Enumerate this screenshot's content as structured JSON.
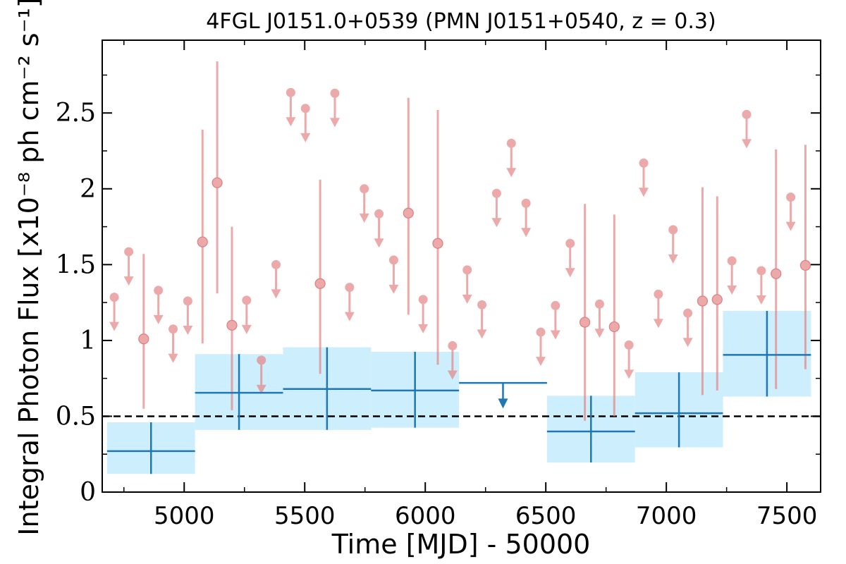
{
  "chart_data": {
    "type": "scatter",
    "title": "4FGL J0151.0+0539 (PMN J0151+0540, z = 0.3)",
    "xlabel": "Time [MJD] - 50000",
    "ylabel": "Integral Photon Flux [x10⁻⁸ ph cm⁻² s⁻¹]",
    "xlim": [
      4660,
      7640
    ],
    "ylim": [
      0,
      2.98
    ],
    "x_ticks": [
      {
        "value": 5000,
        "label": "5000"
      },
      {
        "value": 5500,
        "label": "5500"
      },
      {
        "value": 6000,
        "label": "6000"
      },
      {
        "value": 6500,
        "label": "6500"
      },
      {
        "value": 7000,
        "label": "7000"
      },
      {
        "value": 7500,
        "label": "7500"
      }
    ],
    "y_ticks": [
      {
        "value": 0,
        "label": "0"
      },
      {
        "value": 0.5,
        "label": "0.5"
      },
      {
        "value": 1,
        "label": "1"
      },
      {
        "value": 1.5,
        "label": "1.5"
      },
      {
        "value": 2,
        "label": "2"
      },
      {
        "value": 2.5,
        "label": "2.5"
      }
    ],
    "reference_line": {
      "y": 0.5,
      "style": "dashed"
    },
    "colors": {
      "short_bins": "#e58585",
      "long_bins": "#1f77b4",
      "long_band": "#cdeefd",
      "reference": "#000000"
    },
    "long_bins": [
      {
        "x0": 4680,
        "x1": 5045,
        "value": 0.27,
        "lo": 0.12,
        "hi": 0.46,
        "band_lo": 0.12,
        "band_hi": 0.46,
        "upper_limit": false
      },
      {
        "x0": 5045,
        "x1": 5410,
        "value": 0.655,
        "lo": 0.41,
        "hi": 0.91,
        "band_lo": 0.41,
        "band_hi": 0.91,
        "upper_limit": false
      },
      {
        "x0": 5410,
        "x1": 5775,
        "value": 0.68,
        "lo": 0.41,
        "hi": 0.955,
        "band_lo": 0.41,
        "band_hi": 0.955,
        "upper_limit": false
      },
      {
        "x0": 5775,
        "x1": 6140,
        "value": 0.67,
        "lo": 0.425,
        "hi": 0.925,
        "band_lo": 0.425,
        "band_hi": 0.925,
        "upper_limit": false
      },
      {
        "x0": 6140,
        "x1": 6505,
        "value": 0.72,
        "upper_limit": true
      },
      {
        "x0": 6505,
        "x1": 6870,
        "value": 0.4,
        "lo": 0.195,
        "hi": 0.635,
        "band_lo": 0.195,
        "band_hi": 0.635,
        "upper_limit": false
      },
      {
        "x0": 6870,
        "x1": 7235,
        "value": 0.52,
        "lo": 0.295,
        "hi": 0.79,
        "band_lo": 0.295,
        "band_hi": 0.79,
        "upper_limit": false
      },
      {
        "x0": 7235,
        "x1": 7600,
        "value": 0.905,
        "lo": 0.63,
        "hi": 1.195,
        "band_lo": 0.63,
        "band_hi": 1.195,
        "upper_limit": false
      }
    ],
    "short_bins": [
      {
        "x": 4710,
        "y": 1.285,
        "upper_limit": true
      },
      {
        "x": 4770,
        "y": 1.585,
        "upper_limit": true
      },
      {
        "x": 4832,
        "y": 1.01,
        "upper_limit": false,
        "lo": 0.55,
        "hi": 1.57
      },
      {
        "x": 4893,
        "y": 1.33,
        "upper_limit": true
      },
      {
        "x": 4954,
        "y": 1.075,
        "upper_limit": true
      },
      {
        "x": 5015,
        "y": 1.26,
        "upper_limit": true
      },
      {
        "x": 5076,
        "y": 1.65,
        "upper_limit": false,
        "lo": 0.98,
        "hi": 2.39
      },
      {
        "x": 5137,
        "y": 2.04,
        "upper_limit": false,
        "lo": 1.31,
        "hi": 2.84
      },
      {
        "x": 5198,
        "y": 1.1,
        "upper_limit": false,
        "lo": 0.54,
        "hi": 1.75
      },
      {
        "x": 5259,
        "y": 1.265,
        "upper_limit": true
      },
      {
        "x": 5320,
        "y": 0.87,
        "upper_limit": true
      },
      {
        "x": 5381,
        "y": 1.5,
        "upper_limit": true
      },
      {
        "x": 5442,
        "y": 2.635,
        "upper_limit": true
      },
      {
        "x": 5503,
        "y": 2.53,
        "upper_limit": true
      },
      {
        "x": 5564,
        "y": 1.375,
        "upper_limit": false,
        "lo": 0.78,
        "hi": 2.06
      },
      {
        "x": 5625,
        "y": 2.63,
        "upper_limit": true
      },
      {
        "x": 5686,
        "y": 1.35,
        "upper_limit": true
      },
      {
        "x": 5747,
        "y": 2.0,
        "upper_limit": true
      },
      {
        "x": 5808,
        "y": 1.835,
        "upper_limit": true
      },
      {
        "x": 5869,
        "y": 1.53,
        "upper_limit": true
      },
      {
        "x": 5930,
        "y": 1.84,
        "upper_limit": false,
        "lo": 1.17,
        "hi": 2.6
      },
      {
        "x": 5991,
        "y": 1.27,
        "upper_limit": true
      },
      {
        "x": 6052,
        "y": 1.64,
        "upper_limit": false,
        "lo": 0.84,
        "hi": 2.52
      },
      {
        "x": 6113,
        "y": 0.965,
        "upper_limit": true
      },
      {
        "x": 6174,
        "y": 1.465,
        "upper_limit": true
      },
      {
        "x": 6235,
        "y": 1.235,
        "upper_limit": true
      },
      {
        "x": 6296,
        "y": 1.97,
        "upper_limit": true
      },
      {
        "x": 6357,
        "y": 2.3,
        "upper_limit": true
      },
      {
        "x": 6418,
        "y": 1.905,
        "upper_limit": true
      },
      {
        "x": 6479,
        "y": 1.055,
        "upper_limit": true
      },
      {
        "x": 6540,
        "y": 1.23,
        "upper_limit": true
      },
      {
        "x": 6601,
        "y": 1.64,
        "upper_limit": true
      },
      {
        "x": 6662,
        "y": 1.12,
        "upper_limit": false,
        "lo": 0.47,
        "hi": 1.9
      },
      {
        "x": 6723,
        "y": 1.24,
        "upper_limit": true
      },
      {
        "x": 6784,
        "y": 1.09,
        "upper_limit": false,
        "lo": 0.5,
        "hi": 1.83
      },
      {
        "x": 6845,
        "y": 0.97,
        "upper_limit": true
      },
      {
        "x": 6906,
        "y": 2.17,
        "upper_limit": true
      },
      {
        "x": 6967,
        "y": 1.305,
        "upper_limit": true
      },
      {
        "x": 7028,
        "y": 1.73,
        "upper_limit": true
      },
      {
        "x": 7089,
        "y": 1.18,
        "upper_limit": true
      },
      {
        "x": 7150,
        "y": 1.26,
        "upper_limit": false,
        "lo": 0.64,
        "hi": 2.01
      },
      {
        "x": 7211,
        "y": 1.27,
        "upper_limit": false,
        "lo": 0.67,
        "hi": 1.95
      },
      {
        "x": 7272,
        "y": 1.525,
        "upper_limit": true
      },
      {
        "x": 7333,
        "y": 2.49,
        "upper_limit": true
      },
      {
        "x": 7394,
        "y": 1.46,
        "upper_limit": true
      },
      {
        "x": 7455,
        "y": 1.44,
        "upper_limit": false,
        "lo": 0.68,
        "hi": 2.26
      },
      {
        "x": 7516,
        "y": 1.945,
        "upper_limit": true
      },
      {
        "x": 7577,
        "y": 1.495,
        "upper_limit": false,
        "lo": 0.81,
        "hi": 2.29
      }
    ]
  }
}
